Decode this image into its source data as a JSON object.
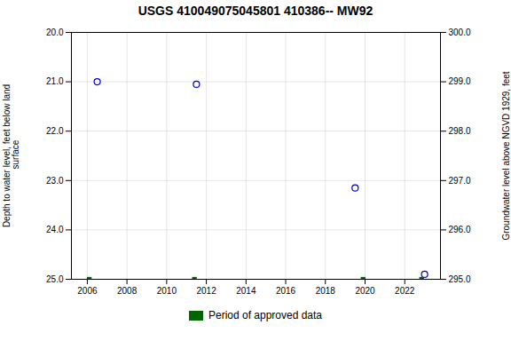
{
  "chart_data": {
    "type": "scatter",
    "title": "USGS 410049075045801 410386-- MW92",
    "ylabel": "Depth to water level, feet below land\n surface",
    "y2label": "Groundwater level above NGVD 1929, feet",
    "xlim": [
      2005.2,
      2023.8
    ],
    "xticks": [
      2006,
      2008,
      2010,
      2012,
      2014,
      2016,
      2018,
      2020,
      2022
    ],
    "ylim": [
      25.0,
      20.0
    ],
    "yticks": [
      {
        "value": 20.0,
        "label": "20.0"
      },
      {
        "value": 21.0,
        "label": "21.0"
      },
      {
        "value": 22.0,
        "label": "22.0"
      },
      {
        "value": 23.0,
        "label": "23.0"
      },
      {
        "value": 24.0,
        "label": "24.0"
      },
      {
        "value": 25.0,
        "label": "25.0"
      }
    ],
    "y2lim": [
      295.0,
      300.0
    ],
    "y2ticks": [
      {
        "value": 295.0,
        "label": "295.0"
      },
      {
        "value": 296.0,
        "label": "296.0"
      },
      {
        "value": 297.0,
        "label": "297.0"
      },
      {
        "value": 298.0,
        "label": "298.0"
      },
      {
        "value": 299.0,
        "label": "299.0"
      },
      {
        "value": 300.0,
        "label": "300.0"
      }
    ],
    "grid": true,
    "legend": "bottom",
    "series": [
      {
        "x": [
          2006.5,
          2011.5,
          2019.5,
          2023.0
        ],
        "values": [
          21.0,
          21.05,
          23.15,
          24.9
        ],
        "color": "#0000cc",
        "marker": "circle"
      },
      {
        "name": "Period of approved data",
        "x": [
          2006.1,
          2011.4,
          2019.9,
          2022.85
        ],
        "values": [
          25.0,
          25.0,
          25.0,
          25.0
        ],
        "color": "#006600",
        "marker": "square"
      }
    ]
  }
}
